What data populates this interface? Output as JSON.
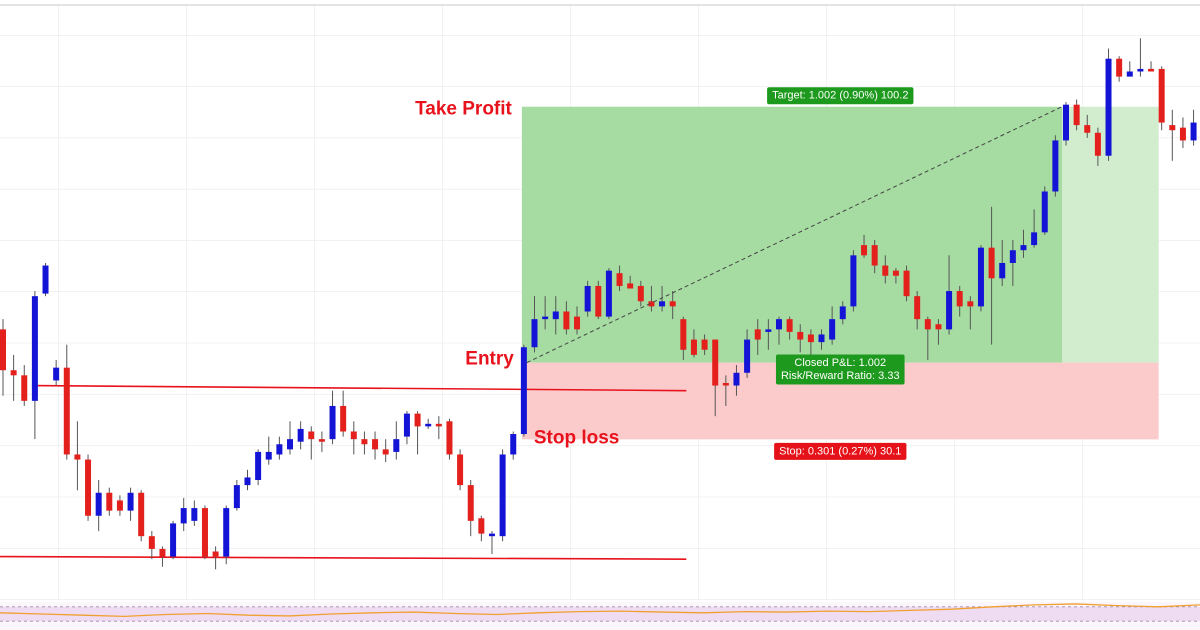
{
  "chart_data": {
    "type": "candlestick",
    "ylim": [
      110.47,
      112.82
    ],
    "up_color": "#1414d6",
    "down_color": "#e4201c",
    "candles": [
      [
        111.53,
        111.57,
        111.27,
        111.37
      ],
      [
        111.37,
        111.43,
        111.25,
        111.35
      ],
      [
        111.35,
        111.39,
        111.23,
        111.25
      ],
      [
        111.25,
        111.68,
        111.1,
        111.66
      ],
      [
        111.67,
        111.79,
        111.66,
        111.78
      ],
      [
        111.33,
        111.41,
        111.31,
        111.38
      ],
      [
        111.38,
        111.47,
        111.02,
        111.04
      ],
      [
        111.04,
        111.17,
        110.9,
        111.02
      ],
      [
        111.02,
        111.04,
        110.78,
        110.8
      ],
      [
        110.8,
        110.94,
        110.74,
        110.89
      ],
      [
        110.89,
        110.91,
        110.8,
        110.82
      ],
      [
        110.86,
        110.88,
        110.8,
        110.82
      ],
      [
        110.82,
        110.91,
        110.78,
        110.89
      ],
      [
        110.89,
        110.9,
        110.7,
        110.72
      ],
      [
        110.72,
        110.74,
        110.63,
        110.67
      ],
      [
        110.67,
        110.68,
        110.6,
        110.64
      ],
      [
        110.64,
        110.78,
        110.63,
        110.77
      ],
      [
        110.77,
        110.87,
        110.74,
        110.83
      ],
      [
        110.78,
        110.86,
        110.76,
        110.83
      ],
      [
        110.83,
        110.84,
        110.63,
        110.64
      ],
      [
        110.66,
        110.68,
        110.59,
        110.64
      ],
      [
        110.64,
        110.84,
        110.61,
        110.83
      ],
      [
        110.83,
        110.94,
        110.82,
        110.92
      ],
      [
        110.92,
        110.98,
        110.9,
        110.95
      ],
      [
        110.94,
        111.06,
        110.92,
        111.05
      ],
      [
        111.02,
        111.11,
        111.0,
        111.05
      ],
      [
        111.04,
        111.11,
        111.02,
        111.08
      ],
      [
        111.06,
        111.17,
        111.04,
        111.1
      ],
      [
        111.09,
        111.17,
        111.06,
        111.14
      ],
      [
        111.13,
        111.15,
        111.02,
        111.1
      ],
      [
        111.1,
        111.13,
        111.05,
        111.09
      ],
      [
        111.1,
        111.29,
        111.08,
        111.23
      ],
      [
        111.23,
        111.29,
        111.11,
        111.13
      ],
      [
        111.13,
        111.17,
        111.04,
        111.1
      ],
      [
        111.1,
        111.13,
        111.04,
        111.08
      ],
      [
        111.1,
        111.13,
        111.02,
        111.06
      ],
      [
        111.06,
        111.1,
        111.01,
        111.04
      ],
      [
        111.05,
        111.17,
        111.02,
        111.1
      ],
      [
        111.11,
        111.21,
        111.08,
        111.2
      ],
      [
        111.2,
        111.21,
        111.04,
        111.15
      ],
      [
        111.15,
        111.18,
        111.14,
        111.16
      ],
      [
        111.16,
        111.19,
        111.1,
        111.15
      ],
      [
        111.17,
        111.18,
        111.02,
        111.04
      ],
      [
        111.04,
        111.06,
        110.9,
        110.92
      ],
      [
        110.92,
        110.94,
        110.72,
        110.78
      ],
      [
        110.79,
        110.8,
        110.7,
        110.73
      ],
      [
        110.72,
        110.74,
        110.65,
        110.73
      ],
      [
        110.72,
        111.06,
        110.7,
        111.04
      ],
      [
        111.04,
        111.13,
        111.02,
        111.12
      ],
      [
        111.12,
        111.47,
        111.11,
        111.46
      ],
      [
        111.46,
        111.66,
        111.44,
        111.57
      ],
      [
        111.57,
        111.66,
        111.53,
        111.58
      ],
      [
        111.57,
        111.66,
        111.51,
        111.6
      ],
      [
        111.6,
        111.64,
        111.51,
        111.53
      ],
      [
        111.58,
        111.62,
        111.51,
        111.53
      ],
      [
        111.6,
        111.72,
        111.58,
        111.7
      ],
      [
        111.7,
        111.72,
        111.57,
        111.58
      ],
      [
        111.58,
        111.77,
        111.57,
        111.76
      ],
      [
        111.75,
        111.78,
        111.68,
        111.7
      ],
      [
        111.71,
        111.74,
        111.69,
        111.69
      ],
      [
        111.7,
        111.72,
        111.62,
        111.64
      ],
      [
        111.64,
        111.7,
        111.6,
        111.62
      ],
      [
        111.62,
        111.7,
        111.6,
        111.64
      ],
      [
        111.64,
        111.68,
        111.57,
        111.62
      ],
      [
        111.57,
        111.58,
        111.41,
        111.45
      ],
      [
        111.49,
        111.53,
        111.42,
        111.43
      ],
      [
        111.49,
        111.51,
        111.43,
        111.45
      ],
      [
        111.49,
        111.49,
        111.19,
        111.31
      ],
      [
        111.32,
        111.35,
        111.23,
        111.31
      ],
      [
        111.31,
        111.39,
        111.27,
        111.36
      ],
      [
        111.36,
        111.53,
        111.34,
        111.49
      ],
      [
        111.53,
        111.57,
        111.43,
        111.49
      ],
      [
        111.52,
        111.57,
        111.45,
        111.53
      ],
      [
        111.53,
        111.58,
        111.47,
        111.57
      ],
      [
        111.57,
        111.58,
        111.49,
        111.52
      ],
      [
        111.52,
        111.55,
        111.44,
        111.49
      ],
      [
        111.51,
        111.53,
        111.43,
        111.48
      ],
      [
        111.48,
        111.53,
        111.45,
        111.51
      ],
      [
        111.49,
        111.62,
        111.47,
        111.57
      ],
      [
        111.57,
        111.64,
        111.55,
        111.62
      ],
      [
        111.62,
        111.84,
        111.6,
        111.82
      ],
      [
        111.86,
        111.9,
        111.81,
        111.82
      ],
      [
        111.86,
        111.88,
        111.75,
        111.78
      ],
      [
        111.78,
        111.82,
        111.71,
        111.74
      ],
      [
        111.76,
        111.77,
        111.71,
        111.74
      ],
      [
        111.76,
        111.78,
        111.64,
        111.66
      ],
      [
        111.66,
        111.68,
        111.53,
        111.57
      ],
      [
        111.57,
        111.58,
        111.41,
        111.53
      ],
      [
        111.55,
        111.57,
        111.47,
        111.53
      ],
      [
        111.53,
        111.82,
        111.51,
        111.68
      ],
      [
        111.68,
        111.7,
        111.58,
        111.62
      ],
      [
        111.64,
        111.66,
        111.53,
        111.62
      ],
      [
        111.62,
        111.86,
        111.6,
        111.85
      ],
      [
        111.85,
        112.01,
        111.47,
        111.73
      ],
      [
        111.73,
        111.88,
        111.7,
        111.79
      ],
      [
        111.79,
        111.88,
        111.7,
        111.84
      ],
      [
        111.84,
        111.92,
        111.81,
        111.86
      ],
      [
        111.86,
        112.0,
        111.85,
        111.91
      ],
      [
        111.91,
        112.09,
        111.9,
        112.07
      ],
      [
        112.07,
        112.29,
        112.05,
        112.27
      ],
      [
        112.27,
        112.42,
        112.25,
        112.41
      ],
      [
        112.41,
        112.43,
        112.31,
        112.33
      ],
      [
        112.33,
        112.37,
        112.28,
        112.3
      ],
      [
        112.3,
        112.32,
        112.17,
        112.21
      ],
      [
        112.21,
        112.63,
        112.19,
        112.59
      ],
      [
        112.59,
        112.6,
        112.5,
        112.52
      ],
      [
        112.52,
        112.58,
        112.52,
        112.54
      ],
      [
        112.54,
        112.67,
        112.52,
        112.55
      ],
      [
        112.55,
        112.58,
        112.54,
        112.54
      ],
      [
        112.55,
        112.56,
        112.31,
        112.34
      ],
      [
        112.33,
        112.39,
        112.19,
        112.31
      ],
      [
        112.32,
        112.36,
        112.24,
        112.27
      ],
      [
        112.27,
        112.39,
        112.25,
        112.34
      ],
      [
        112.35,
        112.46,
        112.33,
        112.45
      ]
    ],
    "levels": [
      {
        "start": 3,
        "end": 64,
        "values": [
          111.31,
          111.29
        ],
        "color": "#e8121c"
      },
      {
        "start": 0,
        "end": 64,
        "values": [
          110.64,
          110.63
        ],
        "color": "#e8121c"
      }
    ],
    "trade": {
      "entry_index": 49,
      "exit_index": 100,
      "end_index": 109,
      "entry": 111.4,
      "target": {
        "value": 1.002,
        "label": "Target: 1.002 (0.90%) 100.2"
      },
      "stop": {
        "value": 0.301,
        "label": "Stop: 0.301 (0.27%) 30.1"
      },
      "closed_pnl": "Closed P&L: 1.002",
      "risk_reward": "Risk/Reward Ratio: 3.33",
      "labels": {
        "take_profit": "Take Profit",
        "entry": "Entry",
        "stop_loss": "Stop loss"
      }
    },
    "indicator": {
      "ylim": [
        0,
        100
      ],
      "band": [
        20,
        80
      ],
      "color": "#f0a030",
      "values": [
        55,
        50,
        45,
        40,
        48,
        52,
        45,
        42,
        50,
        55,
        58,
        52,
        48,
        55,
        60,
        62,
        58,
        55,
        60,
        58,
        62,
        60,
        65,
        70,
        80,
        88,
        92,
        85,
        80,
        88
      ]
    }
  }
}
